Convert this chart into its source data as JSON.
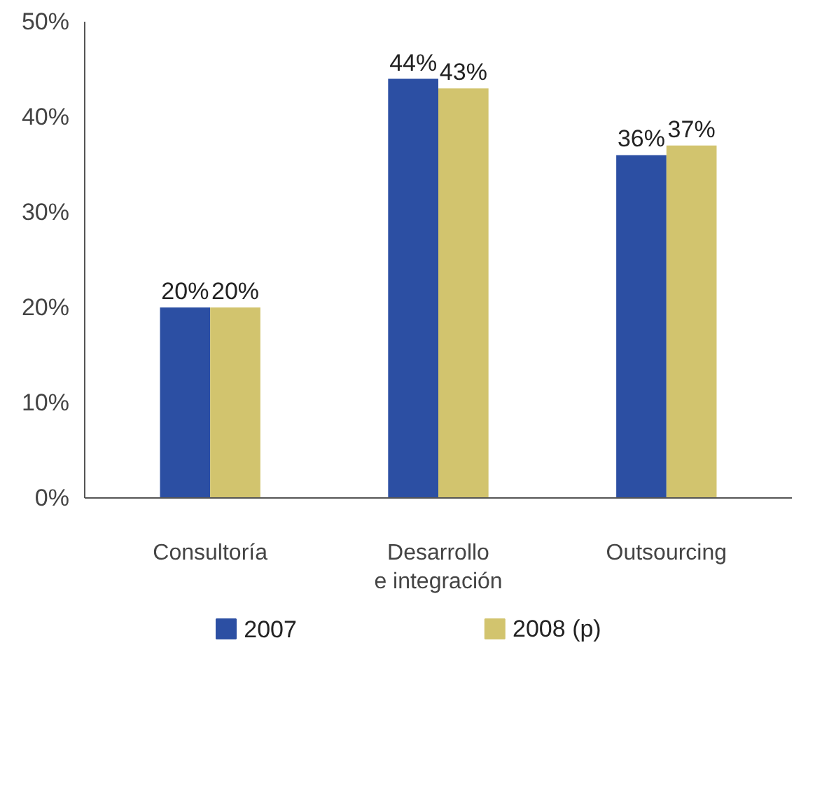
{
  "chart_data": {
    "type": "bar",
    "categories": [
      "Consultoría",
      "Desarrollo e integración",
      "Outsourcing"
    ],
    "series": [
      {
        "name": "2007",
        "color": "#2c4fa3",
        "values": [
          20,
          44,
          36
        ],
        "value_labels": [
          "20%",
          "44%",
          "36%"
        ]
      },
      {
        "name": "2008 (p)",
        "color": "#d2c46e",
        "values": [
          20,
          43,
          37
        ],
        "value_labels": [
          "20%",
          "43%",
          "37%"
        ]
      }
    ],
    "ylim": [
      0,
      50
    ],
    "yticks": [
      {
        "value": 0,
        "label": "0%"
      },
      {
        "value": 10,
        "label": "10%"
      },
      {
        "value": 20,
        "label": "20%"
      },
      {
        "value": 30,
        "label": "30%"
      },
      {
        "value": 40,
        "label": "40%"
      },
      {
        "value": 50,
        "label": "50%"
      }
    ],
    "legend": "bottom"
  }
}
